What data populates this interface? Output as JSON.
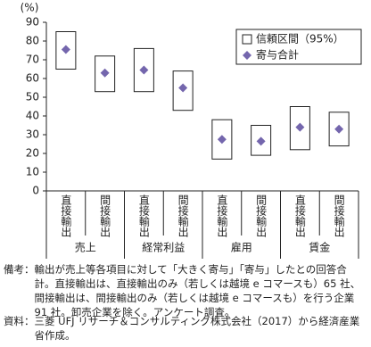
{
  "chart_data": {
    "type": "interval",
    "ylabel": "(%)",
    "categories": [
      "直接輸出",
      "間接輸出",
      "直接輸出",
      "間接輸出",
      "直接輸出",
      "間接輸出",
      "直接輸出",
      "間接輸出"
    ],
    "groups": [
      "売上",
      "経常利益",
      "雇用",
      "賃金"
    ],
    "series": [
      {
        "name": "信頼区間（95%）",
        "color": "#ffffff",
        "lower": [
          65,
          53,
          53,
          43,
          17,
          19,
          22,
          24
        ],
        "upper": [
          85,
          72,
          76,
          64,
          38,
          35,
          45,
          42
        ]
      },
      {
        "name": "寄与合計",
        "color": "#7466ad",
        "values": [
          75.5,
          63,
          64.5,
          55,
          27.5,
          26.5,
          34,
          33
        ]
      }
    ],
    "ylim": [
      0,
      90
    ],
    "yticks": [
      0,
      10,
      20,
      30,
      40,
      50,
      60,
      70,
      80,
      90
    ],
    "legend": "upper right"
  },
  "notes": [
    {
      "label": "備考：",
      "text": "輸出が売上等各項目に対して「大きく寄与」「寄与」したとの回答合計。直接輸出は、直接輸出のみ（若しくは越境 e コマースも）65 社、間接輸出は、間接輸出のみ（若しくは越境 e コマースも）を行う企業 91 社。卸売企業を除く。アンケート調査。"
    },
    {
      "label": "資料：",
      "text": "三菱 UFJ リサーチ＆コンサルティング株式会社（2017）から経済産業省作成。"
    }
  ]
}
